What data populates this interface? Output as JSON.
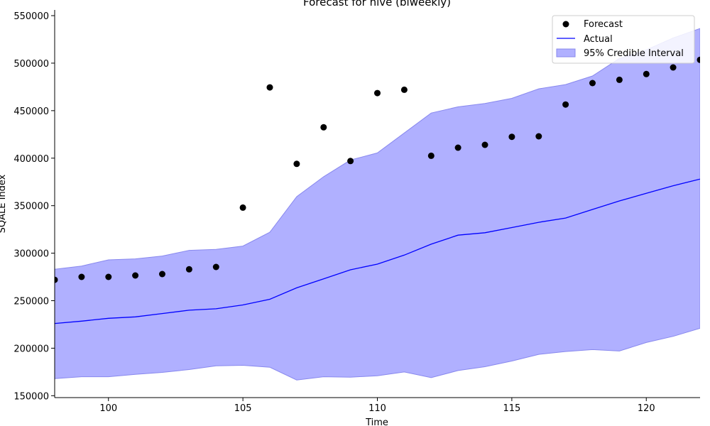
{
  "chart_data": {
    "type": "line",
    "title": "Forecast for hive (biweekly)",
    "xlabel": "Time",
    "ylabel": "SQALE Index",
    "xlim": [
      98,
      122
    ],
    "ylim": [
      148000,
      556000
    ],
    "x_ticks": [
      100,
      105,
      110,
      115,
      120
    ],
    "y_ticks": [
      150000,
      200000,
      250000,
      300000,
      350000,
      400000,
      450000,
      500000,
      550000
    ],
    "grid": false,
    "legend_position": "top-right",
    "x": [
      98,
      99,
      100,
      101,
      102,
      103,
      104,
      105,
      106,
      107,
      108,
      109,
      110,
      111,
      112,
      113,
      114,
      115,
      116,
      117,
      118,
      119,
      120,
      121,
      122
    ],
    "series": [
      {
        "name": "Forecast",
        "kind": "scatter",
        "color": "#000000",
        "values": [
          272000,
          275000,
          275000,
          276500,
          278000,
          283000,
          285500,
          348000,
          474500,
          394000,
          432500,
          397000,
          468500,
          472000,
          402500,
          411000,
          414000,
          422500,
          423000,
          456500,
          479000,
          482500,
          488500,
          495500,
          503500
        ]
      },
      {
        "name": "Actual",
        "kind": "line",
        "color": "#0000ff",
        "values": [
          226000,
          228500,
          231500,
          233000,
          236500,
          240000,
          241500,
          245500,
          251500,
          263500,
          273000,
          282500,
          288500,
          298000,
          309500,
          319000,
          321500,
          327000,
          332500,
          337000,
          346000,
          355000,
          363000,
          371000,
          378000
        ]
      },
      {
        "name": "95% Credible Interval",
        "kind": "band",
        "color": "#b0b0ff",
        "lower": [
          168000,
          170000,
          170000,
          172500,
          174500,
          177500,
          181500,
          182000,
          180000,
          166500,
          170000,
          169500,
          171000,
          175000,
          169000,
          176500,
          180500,
          186500,
          193500,
          196500,
          198500,
          197000,
          206000,
          212500,
          221000
        ],
        "upper": [
          283000,
          286500,
          293000,
          294000,
          297000,
          303000,
          304000,
          307500,
          322000,
          359500,
          380500,
          398000,
          405500,
          426500,
          447500,
          454000,
          457500,
          463000,
          473000,
          477500,
          486500,
          505000,
          514000,
          526500,
          536500
        ]
      }
    ]
  }
}
